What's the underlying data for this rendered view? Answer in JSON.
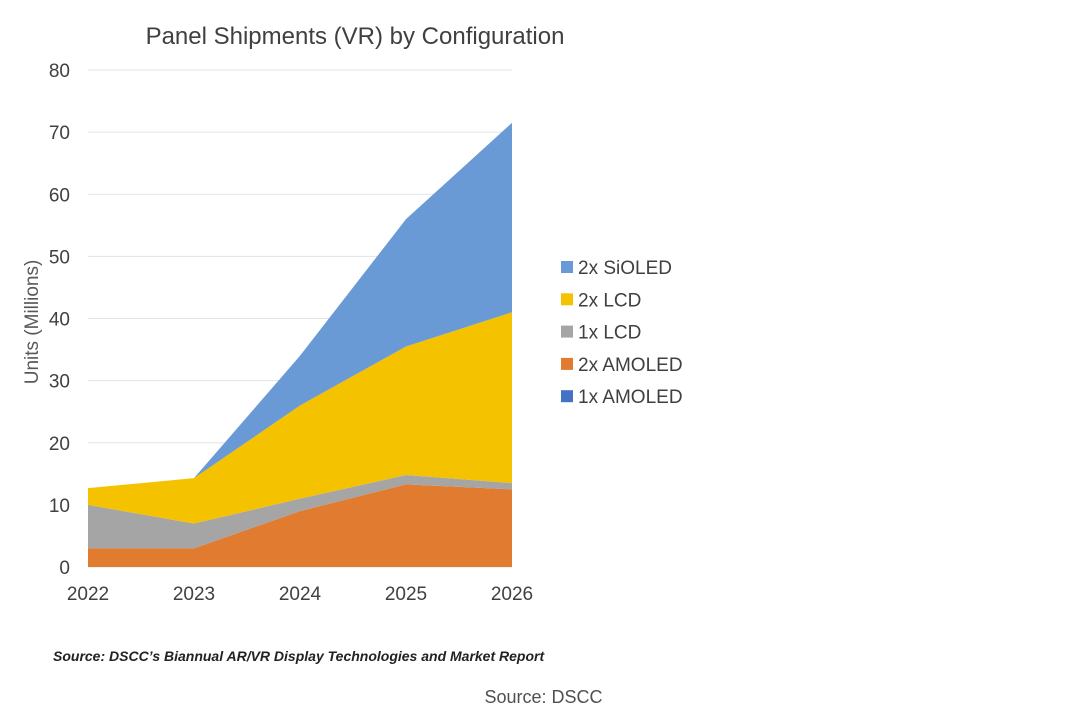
{
  "chart_data": {
    "type": "area",
    "stacked": true,
    "title": "Panel Shipments (VR) by Configuration",
    "xlabel": "",
    "ylabel": "Units (Millions)",
    "categories": [
      "2022",
      "2023",
      "2024",
      "2025",
      "2026"
    ],
    "ylim": [
      0,
      80
    ],
    "yticks": [
      0,
      10,
      20,
      30,
      40,
      50,
      60,
      70,
      80
    ],
    "grid": true,
    "legend_position": "right",
    "series": [
      {
        "name": "1x AMOLED",
        "color": "#4472C4",
        "values": [
          0,
          0,
          0,
          0,
          0
        ]
      },
      {
        "name": "2x AMOLED",
        "color": "#E07B30",
        "values": [
          3,
          3,
          9,
          13.3,
          12.5
        ]
      },
      {
        "name": "1x LCD",
        "color": "#A5A5A5",
        "values": [
          7,
          4,
          2,
          1.5,
          1
        ]
      },
      {
        "name": "2x LCD",
        "color": "#F5C200",
        "values": [
          2.7,
          7.3,
          15,
          20.7,
          27.5
        ]
      },
      {
        "name": "2x SiOLED",
        "color": "#6A9AD6",
        "values": [
          0,
          0,
          8,
          20.5,
          30.5
        ]
      }
    ],
    "legend_order": [
      "2x SiOLED",
      "2x LCD",
      "1x LCD",
      "2x AMOLED",
      "1x AMOLED"
    ]
  },
  "source_note": "Source: DSCC’s Biannual AR/VR Display Technologies and Market Report",
  "caption": "Source: DSCC"
}
